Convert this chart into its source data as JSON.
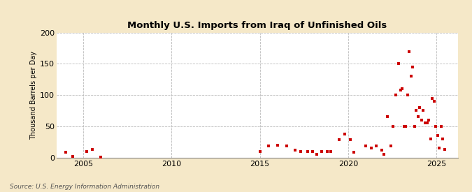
{
  "title": "Monthly U.S. Imports from Iraq of Unfinished Oils",
  "ylabel": "Thousand Barrels per Day",
  "source": "Source: U.S. Energy Information Administration",
  "background_color": "#f5e8c8",
  "plot_background_color": "#ffffff",
  "marker_color": "#cc0000",
  "marker_size": 9,
  "ylim": [
    0,
    200
  ],
  "yticks": [
    0,
    50,
    100,
    150,
    200
  ],
  "xlim_start": 2003.5,
  "xlim_end": 2026.2,
  "xticks": [
    2005,
    2010,
    2015,
    2020,
    2025
  ],
  "data": [
    [
      2004.0,
      8
    ],
    [
      2004.4,
      2
    ],
    [
      2005.2,
      10
    ],
    [
      2005.5,
      13
    ],
    [
      2006.0,
      1
    ],
    [
      2015.0,
      10
    ],
    [
      2015.5,
      18
    ],
    [
      2016.0,
      20
    ],
    [
      2016.5,
      18
    ],
    [
      2017.0,
      12
    ],
    [
      2017.3,
      10
    ],
    [
      2017.7,
      10
    ],
    [
      2018.0,
      10
    ],
    [
      2018.2,
      5
    ],
    [
      2018.5,
      10
    ],
    [
      2018.8,
      10
    ],
    [
      2019.0,
      10
    ],
    [
      2019.5,
      28
    ],
    [
      2019.8,
      38
    ],
    [
      2020.1,
      28
    ],
    [
      2020.3,
      8
    ],
    [
      2021.0,
      18
    ],
    [
      2021.3,
      15
    ],
    [
      2021.6,
      18
    ],
    [
      2021.9,
      12
    ],
    [
      2022.0,
      5
    ],
    [
      2022.2,
      65
    ],
    [
      2022.4,
      18
    ],
    [
      2022.55,
      50
    ],
    [
      2022.7,
      100
    ],
    [
      2022.85,
      150
    ],
    [
      2022.95,
      108
    ],
    [
      2023.05,
      110
    ],
    [
      2023.15,
      50
    ],
    [
      2023.25,
      50
    ],
    [
      2023.35,
      100
    ],
    [
      2023.45,
      170
    ],
    [
      2023.55,
      130
    ],
    [
      2023.65,
      145
    ],
    [
      2023.75,
      50
    ],
    [
      2023.85,
      75
    ],
    [
      2023.95,
      65
    ],
    [
      2024.05,
      80
    ],
    [
      2024.15,
      60
    ],
    [
      2024.25,
      75
    ],
    [
      2024.35,
      55
    ],
    [
      2024.45,
      55
    ],
    [
      2024.55,
      60
    ],
    [
      2024.65,
      30
    ],
    [
      2024.75,
      95
    ],
    [
      2024.85,
      90
    ],
    [
      2024.95,
      50
    ],
    [
      2025.05,
      35
    ],
    [
      2025.15,
      15
    ],
    [
      2025.25,
      50
    ],
    [
      2025.35,
      30
    ],
    [
      2025.45,
      13
    ]
  ]
}
